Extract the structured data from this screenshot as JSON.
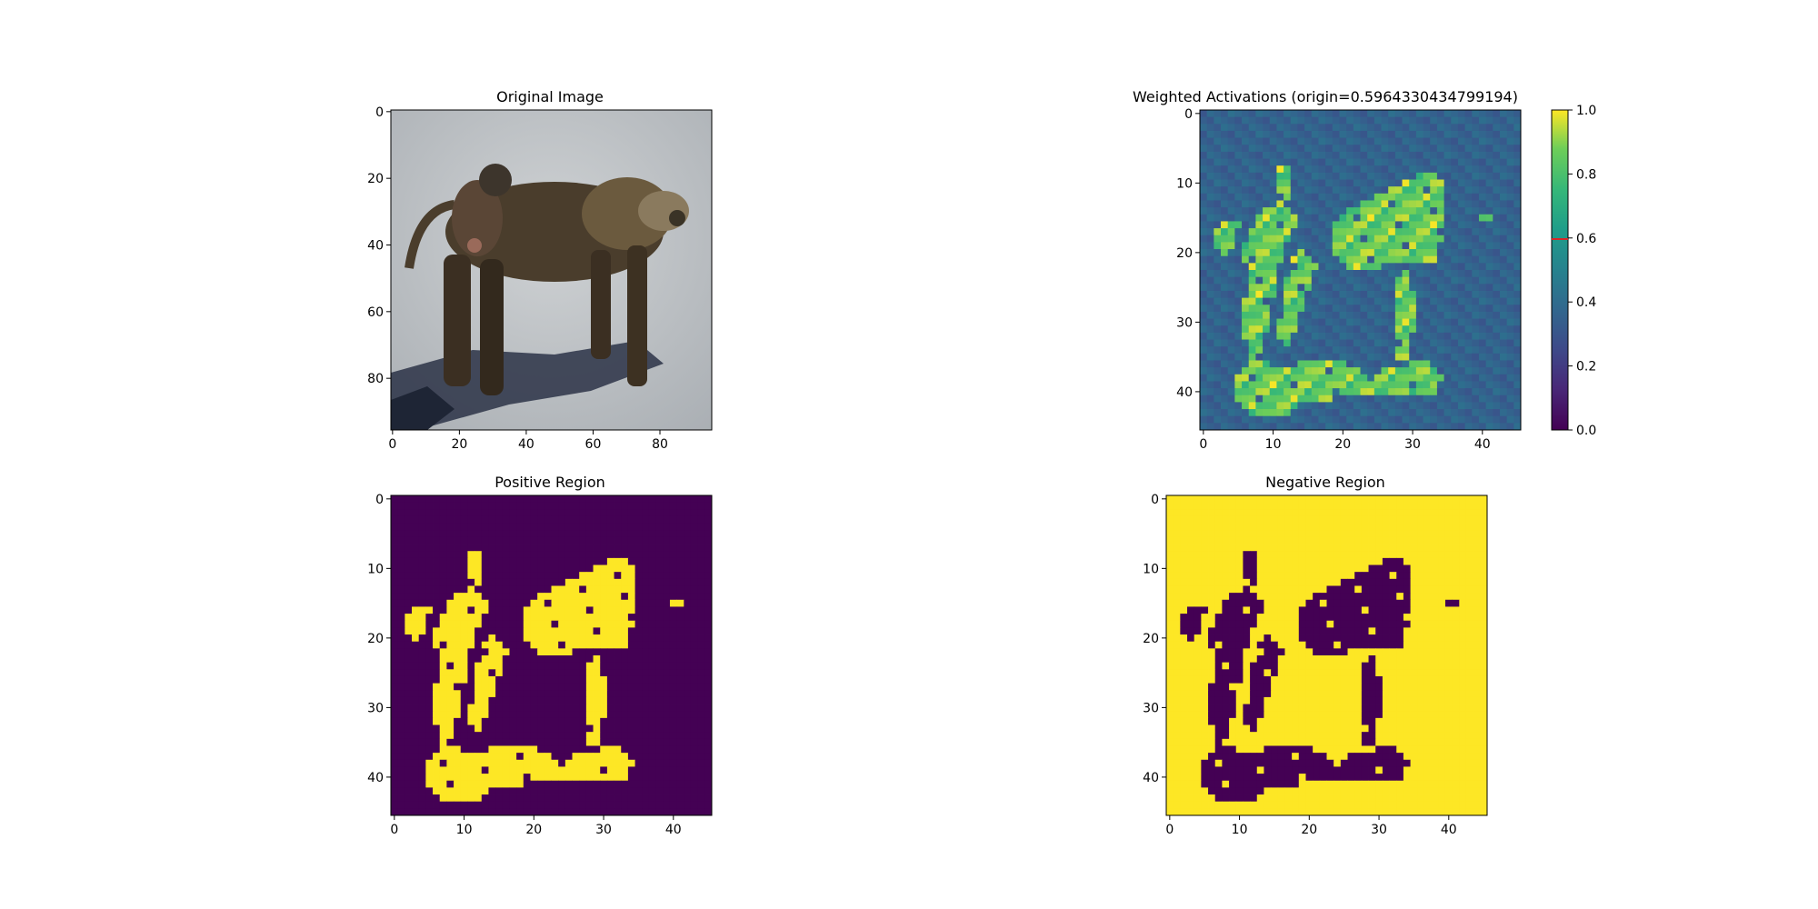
{
  "colors": {
    "viridis_low": "#440154",
    "viridis_high": "#fde725",
    "origin_marker": "#d62728"
  },
  "panels": {
    "original": {
      "title": "Original Image",
      "content": "photo: adult baboon carrying a baby baboon on its back, standing on a road with a shadow",
      "x_ticks": [
        "0",
        "20",
        "40",
        "60",
        "80"
      ],
      "y_ticks": [
        "0",
        "20",
        "40",
        "60",
        "80"
      ]
    },
    "weighted": {
      "title": "Weighted Activations (origin=0.5964330434799194)",
      "x_ticks": [
        "0",
        "10",
        "20",
        "30",
        "40"
      ],
      "y_ticks": [
        "0",
        "10",
        "20",
        "30",
        "40"
      ],
      "colorbar_ticks": [
        "0.0",
        "0.2",
        "0.4",
        "0.6",
        "0.8",
        "1.0"
      ]
    },
    "positive": {
      "title": "Positive Region",
      "x_ticks": [
        "0",
        "10",
        "20",
        "30",
        "40"
      ],
      "y_ticks": [
        "0",
        "10",
        "20",
        "30",
        "40"
      ]
    },
    "negative": {
      "title": "Negative Region",
      "x_ticks": [
        "0",
        "10",
        "20",
        "30",
        "40"
      ],
      "y_ticks": [
        "0",
        "10",
        "20",
        "30",
        "40"
      ]
    }
  },
  "chart_data": [
    {
      "type": "image",
      "title": "Original Image",
      "xlim": [
        -0.5,
        95.5
      ],
      "ylim": [
        95.5,
        -0.5
      ],
      "x_ticks": [
        0,
        20,
        40,
        60,
        80
      ],
      "y_ticks": [
        0,
        20,
        40,
        60,
        80
      ]
    },
    {
      "type": "heatmap",
      "title": "Weighted Activations (origin=0.5964330434799194)",
      "grid": [
        46,
        46
      ],
      "xlim": [
        -0.5,
        45.5
      ],
      "ylim": [
        45.5,
        -0.5
      ],
      "x_ticks": [
        0,
        10,
        20,
        30,
        40
      ],
      "y_ticks": [
        0,
        10,
        20,
        30,
        40
      ],
      "colormap": "viridis",
      "vmin": 0.0,
      "vmax": 1.0,
      "origin": 0.5964330434799194,
      "colorbar_ticks": [
        0.0,
        0.2,
        0.4,
        0.6,
        0.8,
        1.0
      ]
    },
    {
      "type": "heatmap",
      "title": "Positive Region",
      "grid": [
        46,
        46
      ],
      "xlim": [
        -0.5,
        45.5
      ],
      "ylim": [
        45.5,
        -0.5
      ],
      "x_ticks": [
        0,
        10,
        20,
        30,
        40
      ],
      "y_ticks": [
        0,
        10,
        20,
        30,
        40
      ],
      "colormap": "binary viridis",
      "values_note": "yellow = activation above origin, purple elsewhere"
    },
    {
      "type": "heatmap",
      "title": "Negative Region",
      "grid": [
        46,
        46
      ],
      "xlim": [
        -0.5,
        45.5
      ],
      "ylim": [
        45.5,
        -0.5
      ],
      "x_ticks": [
        0,
        10,
        20,
        30,
        40
      ],
      "y_ticks": [
        0,
        10,
        20,
        30,
        40
      ],
      "colormap": "binary viridis",
      "values_note": "inverse of Positive Region"
    }
  ]
}
